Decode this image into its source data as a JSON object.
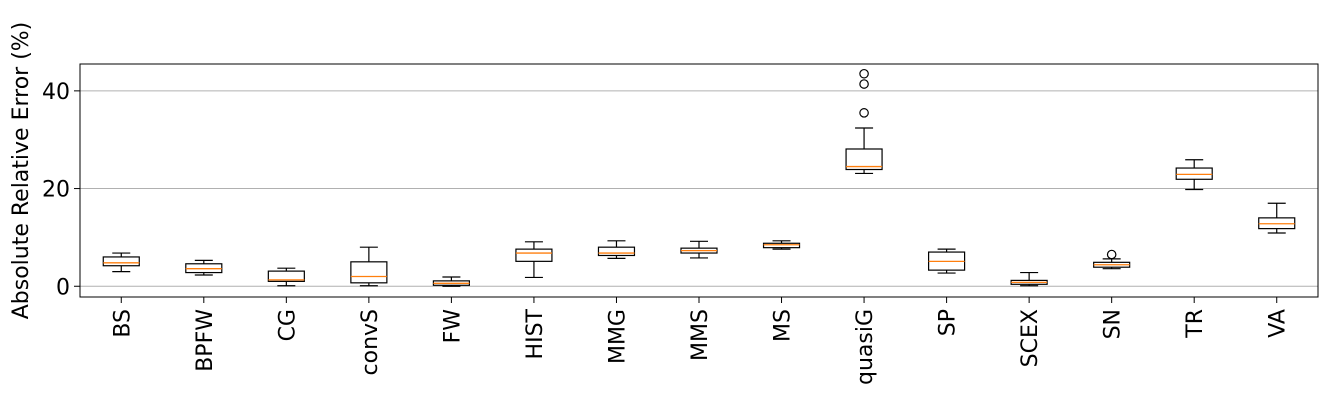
{
  "chart_data": {
    "type": "box",
    "title": "",
    "xlabel": "",
    "ylabel": "Absolute Relative Error (%)",
    "ylim": [
      -2.2,
      45.5
    ],
    "yticks": [
      0,
      20,
      40
    ],
    "grid": "y",
    "legend": "none",
    "colors": {
      "box": "#000000",
      "median": "#ff7f0e",
      "grid": "#b0b0b0"
    },
    "categories": [
      "BS",
      "BPFW",
      "CG",
      "convS",
      "FW",
      "HIST",
      "MMG",
      "MMS",
      "MS",
      "quasiG",
      "SP",
      "SCEX",
      "SN",
      "TR",
      "VA"
    ],
    "boxes": [
      {
        "label": "BS",
        "whisker_low": 3.0,
        "q1": 4.2,
        "median": 4.8,
        "q3": 6.0,
        "whisker_high": 6.8,
        "outliers": []
      },
      {
        "label": "BPFW",
        "whisker_low": 2.3,
        "q1": 2.8,
        "median": 3.6,
        "q3": 4.6,
        "whisker_high": 5.3,
        "outliers": []
      },
      {
        "label": "CG",
        "whisker_low": 0.1,
        "q1": 1.0,
        "median": 1.3,
        "q3": 3.1,
        "whisker_high": 3.7,
        "outliers": []
      },
      {
        "label": "convS",
        "whisker_low": 0.1,
        "q1": 0.7,
        "median": 2.0,
        "q3": 5.0,
        "whisker_high": 8.0,
        "outliers": []
      },
      {
        "label": "FW",
        "whisker_low": 0.0,
        "q1": 0.2,
        "median": 0.6,
        "q3": 1.1,
        "whisker_high": 1.9,
        "outliers": []
      },
      {
        "label": "HIST",
        "whisker_low": 1.8,
        "q1": 5.1,
        "median": 6.8,
        "q3": 7.6,
        "whisker_high": 9.1,
        "outliers": []
      },
      {
        "label": "MMG",
        "whisker_low": 5.7,
        "q1": 6.3,
        "median": 6.8,
        "q3": 8.0,
        "whisker_high": 9.3,
        "outliers": []
      },
      {
        "label": "MMS",
        "whisker_low": 5.8,
        "q1": 6.8,
        "median": 7.3,
        "q3": 7.8,
        "whisker_high": 9.2,
        "outliers": []
      },
      {
        "label": "MS",
        "whisker_low": 7.6,
        "q1": 7.9,
        "median": 8.5,
        "q3": 8.8,
        "whisker_high": 9.3,
        "outliers": []
      },
      {
        "label": "quasiG",
        "whisker_low": 23.1,
        "q1": 23.9,
        "median": 24.5,
        "q3": 28.1,
        "whisker_high": 32.4,
        "outliers": [
          35.5,
          41.4,
          43.5
        ]
      },
      {
        "label": "SP",
        "whisker_low": 2.7,
        "q1": 3.3,
        "median": 5.1,
        "q3": 7.0,
        "whisker_high": 7.6,
        "outliers": []
      },
      {
        "label": "SCEX",
        "whisker_low": 0.1,
        "q1": 0.4,
        "median": 0.8,
        "q3": 1.2,
        "whisker_high": 2.8,
        "outliers": []
      },
      {
        "label": "SN",
        "whisker_low": 3.6,
        "q1": 3.9,
        "median": 4.4,
        "q3": 4.9,
        "whisker_high": 5.6,
        "outliers": [
          6.5
        ]
      },
      {
        "label": "TR",
        "whisker_low": 19.8,
        "q1": 21.9,
        "median": 22.9,
        "q3": 24.2,
        "whisker_high": 25.9,
        "outliers": []
      },
      {
        "label": "VA",
        "whisker_low": 10.9,
        "q1": 11.8,
        "median": 12.8,
        "q3": 14.0,
        "whisker_high": 17.0,
        "outliers": []
      }
    ]
  }
}
